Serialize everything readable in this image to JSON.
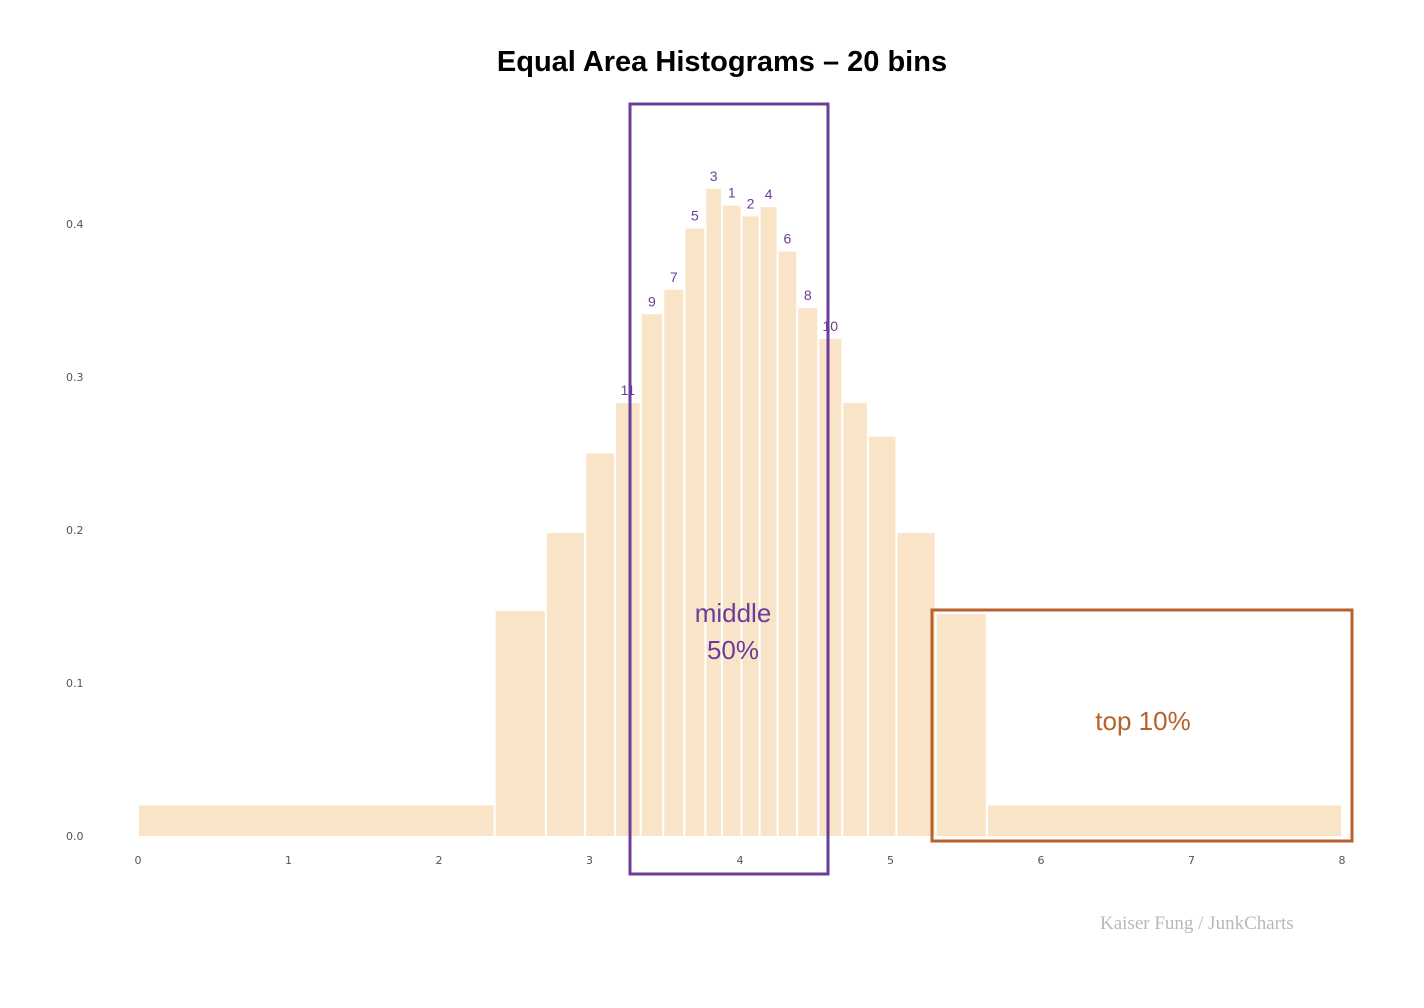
{
  "title": "Equal Area Histograms – 20 bins",
  "credit": "Kaiser Fung / JunkCharts",
  "colors": {
    "bar_fill": "#fae4c8",
    "middle_box": "#6a3d9a",
    "top_box": "#b8612a",
    "credit_text": "#b8b8b8"
  },
  "annotations": {
    "middle": {
      "line1": "middle",
      "line2": "50%"
    },
    "top": {
      "label": "top 10%"
    }
  },
  "chart_data": {
    "type": "bar",
    "subtype": "histogram_variable_width",
    "title": "Equal Area Histograms – 20 bins",
    "xlabel": "",
    "ylabel": "",
    "xlim": [
      0,
      8
    ],
    "ylim": [
      0,
      0.42
    ],
    "x_ticks": [
      "0",
      "1",
      "2",
      "3",
      "4",
      "5",
      "6",
      "7",
      "8"
    ],
    "y_ticks": [
      "0.0",
      "0.1",
      "0.2",
      "0.3",
      "0.4"
    ],
    "grid": false,
    "bins": [
      {
        "left": 0.0,
        "right": 2.37,
        "density": 0.02,
        "rank": ""
      },
      {
        "left": 2.37,
        "right": 2.71,
        "density": 0.147,
        "rank": ""
      },
      {
        "left": 2.71,
        "right": 2.97,
        "density": 0.198,
        "rank": ""
      },
      {
        "left": 2.97,
        "right": 3.17,
        "density": 0.25,
        "rank": ""
      },
      {
        "left": 3.17,
        "right": 3.34,
        "density": 0.283,
        "rank": "11"
      },
      {
        "left": 3.34,
        "right": 3.49,
        "density": 0.341,
        "rank": "9"
      },
      {
        "left": 3.49,
        "right": 3.63,
        "density": 0.357,
        "rank": "7"
      },
      {
        "left": 3.63,
        "right": 3.77,
        "density": 0.397,
        "rank": "5"
      },
      {
        "left": 3.77,
        "right": 3.88,
        "density": 0.423,
        "rank": "3"
      },
      {
        "left": 3.88,
        "right": 4.01,
        "density": 0.412,
        "rank": "1"
      },
      {
        "left": 4.01,
        "right": 4.13,
        "density": 0.405,
        "rank": "2"
      },
      {
        "left": 4.13,
        "right": 4.25,
        "density": 0.411,
        "rank": "4"
      },
      {
        "left": 4.25,
        "right": 4.38,
        "density": 0.382,
        "rank": "6"
      },
      {
        "left": 4.38,
        "right": 4.52,
        "density": 0.345,
        "rank": "8"
      },
      {
        "left": 4.52,
        "right": 4.68,
        "density": 0.325,
        "rank": "10"
      },
      {
        "left": 4.68,
        "right": 4.85,
        "density": 0.283,
        "rank": ""
      },
      {
        "left": 4.85,
        "right": 5.04,
        "density": 0.261,
        "rank": ""
      },
      {
        "left": 5.04,
        "right": 5.3,
        "density": 0.198,
        "rank": ""
      },
      {
        "left": 5.3,
        "right": 5.64,
        "density": 0.145,
        "rank": ""
      },
      {
        "left": 5.64,
        "right": 8.0,
        "density": 0.02,
        "rank": ""
      }
    ],
    "annotations": [
      {
        "text": "middle 50%",
        "type": "box",
        "color": "#6a3d9a",
        "x_range": [
          3.27,
          4.59
        ]
      },
      {
        "text": "top 10%",
        "type": "box",
        "color": "#b8612a",
        "x_range": [
          5.25,
          8.07
        ]
      }
    ]
  }
}
